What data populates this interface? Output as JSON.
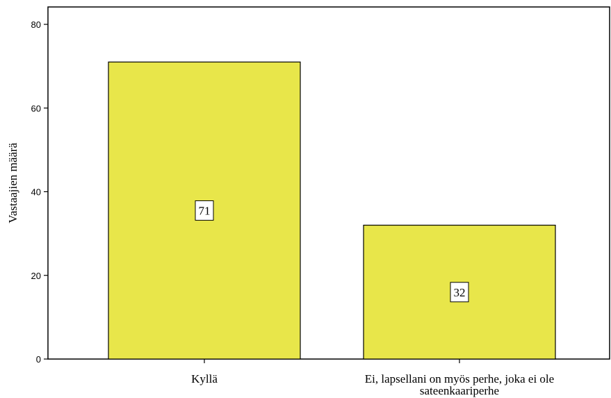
{
  "chart_data": {
    "type": "bar",
    "categories": [
      "Kyllä",
      "Ei, lapsellani on myös perhe, joka ei ole sateenkaariperhe"
    ],
    "category_label_lines": [
      [
        "Kyllä"
      ],
      [
        "Ei, lapsellani on myös perhe, joka ei ole",
        "sateenkaariperhe"
      ]
    ],
    "values": [
      71,
      32
    ],
    "data_labels": [
      "71",
      "32"
    ],
    "title": "",
    "xlabel": "",
    "ylabel": "Vastaajien määrä",
    "ylim": [
      0,
      80
    ],
    "yticks": [
      0,
      20,
      40,
      60,
      80
    ],
    "grid": false,
    "bar_color": "#e8e64a",
    "bar_border_color": "#000000"
  }
}
